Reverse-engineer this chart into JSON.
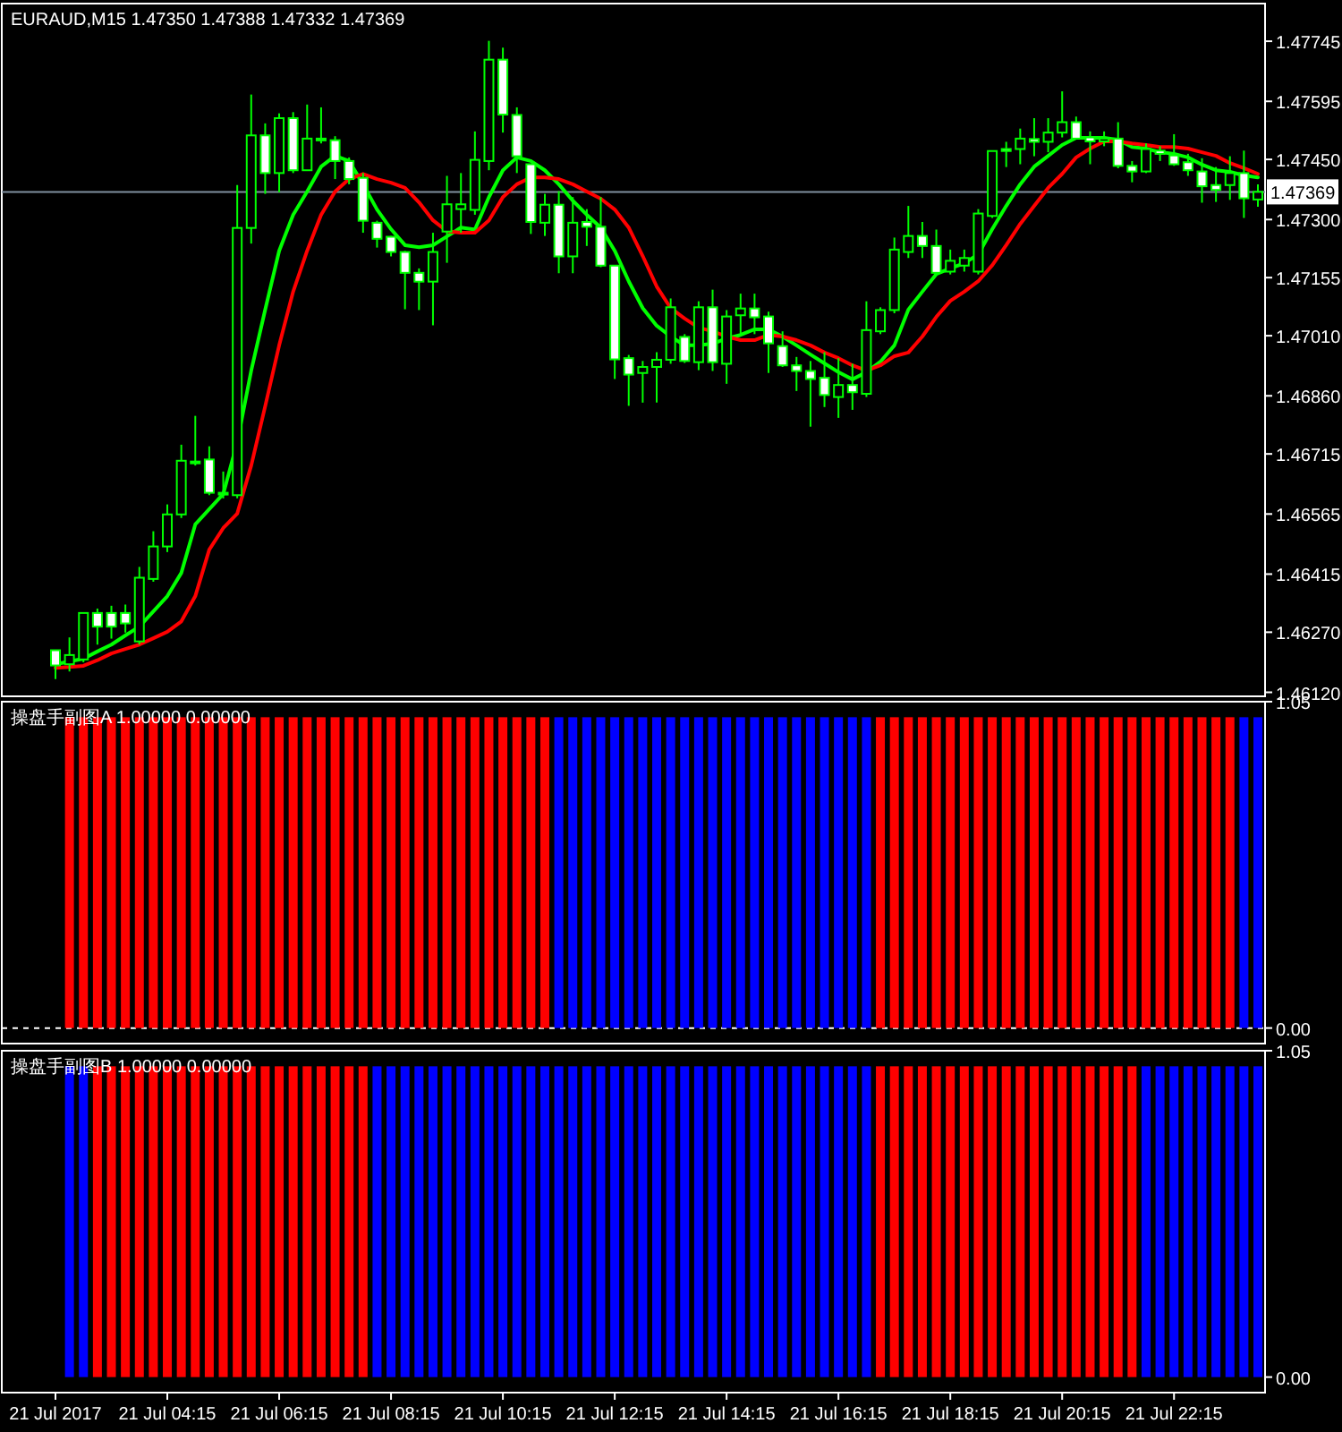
{
  "chart_data": [
    {
      "type": "candlestick",
      "title": "EURAUD,M15  1.47350 1.47388 1.47332 1.47369",
      "color": "#00ff00",
      "ohlc": [
        [
          1.46225,
          1.46226,
          1.46153,
          1.46187
        ],
        [
          1.4619,
          1.46257,
          1.46172,
          1.46213
        ],
        [
          1.46202,
          1.4632,
          1.46195,
          1.46318
        ],
        [
          1.46318,
          1.46329,
          1.46239,
          1.46284
        ],
        [
          1.46318,
          1.46336,
          1.46254,
          1.46284
        ],
        [
          1.46318,
          1.46339,
          1.46269,
          1.46292
        ],
        [
          1.46247,
          1.46433,
          1.46239,
          1.46406
        ],
        [
          1.46403,
          1.46522,
          1.46396,
          1.46484
        ],
        [
          1.46484,
          1.46589,
          1.4647,
          1.46564
        ],
        [
          1.46564,
          1.46738,
          1.46555,
          1.46698
        ],
        [
          1.46696,
          1.4681,
          1.46686,
          1.46694
        ],
        [
          1.46701,
          1.46734,
          1.46612,
          1.46618
        ],
        [
          1.46618,
          1.46671,
          1.46604,
          1.46615
        ],
        [
          1.46612,
          1.47386,
          1.46604,
          1.47279
        ],
        [
          1.47279,
          1.47612,
          1.4724,
          1.4751
        ],
        [
          1.4751,
          1.4754,
          1.47364,
          1.47416
        ],
        [
          1.47416,
          1.47565,
          1.47368,
          1.47553
        ],
        [
          1.47553,
          1.47568,
          1.47416,
          1.47423
        ],
        [
          1.47423,
          1.47587,
          1.47423,
          1.47502
        ],
        [
          1.47502,
          1.4758,
          1.4749,
          1.47499
        ],
        [
          1.47498,
          1.47508,
          1.47401,
          1.47446
        ],
        [
          1.47446,
          1.47455,
          1.47388,
          1.47401
        ],
        [
          1.47404,
          1.47416,
          1.47267,
          1.47297
        ],
        [
          1.47292,
          1.47297,
          1.4723,
          1.47252
        ],
        [
          1.47257,
          1.47259,
          1.47208,
          1.47219
        ],
        [
          1.47219,
          1.47222,
          1.47076,
          1.47167
        ],
        [
          1.47167,
          1.47178,
          1.47074,
          1.47145
        ],
        [
          1.47145,
          1.47267,
          1.47036,
          1.47219
        ],
        [
          1.4727,
          1.47409,
          1.47192,
          1.47338
        ],
        [
          1.47326,
          1.47416,
          1.47267,
          1.47338
        ],
        [
          1.47324,
          1.4752,
          1.47312,
          1.47449
        ],
        [
          1.47446,
          1.47746,
          1.47423,
          1.47699
        ],
        [
          1.47699,
          1.47729,
          1.47517,
          1.47562
        ],
        [
          1.47561,
          1.4758,
          1.47416,
          1.47458
        ],
        [
          1.47438,
          1.47438,
          1.47264,
          1.47294
        ],
        [
          1.47292,
          1.47364,
          1.47259,
          1.47337
        ],
        [
          1.47337,
          1.47371,
          1.47166,
          1.47208
        ],
        [
          1.47208,
          1.47356,
          1.47166,
          1.47292
        ],
        [
          1.47294,
          1.47326,
          1.47234,
          1.47282
        ],
        [
          1.47282,
          1.47356,
          1.47181,
          1.47185
        ],
        [
          1.47185,
          1.47185,
          1.46902,
          1.46951
        ],
        [
          1.46954,
          1.46962,
          1.46835,
          1.46913
        ],
        [
          1.46917,
          1.46947,
          1.46843,
          1.46932
        ],
        [
          1.46932,
          1.46969,
          1.46843,
          1.4695
        ],
        [
          1.4695,
          1.47103,
          1.4694,
          1.47081
        ],
        [
          1.47007,
          1.47014,
          1.46942,
          1.46947
        ],
        [
          1.46944,
          1.47096,
          1.46924,
          1.47081
        ],
        [
          1.47081,
          1.47125,
          1.46922,
          1.46944
        ],
        [
          1.4694,
          1.47074,
          1.4689,
          1.47058
        ],
        [
          1.47061,
          1.47115,
          1.47014,
          1.47078
        ],
        [
          1.47078,
          1.47115,
          1.47014,
          1.47056
        ],
        [
          1.47058,
          1.4707,
          1.46917,
          1.46991
        ],
        [
          1.46984,
          1.47021,
          1.46932,
          1.46936
        ],
        [
          1.46936,
          1.46957,
          1.46872,
          1.46922
        ],
        [
          1.46922,
          1.46947,
          1.46783,
          1.46902
        ],
        [
          1.46905,
          1.46969,
          1.46832,
          1.46862
        ],
        [
          1.46857,
          1.46954,
          1.46805,
          1.46887
        ],
        [
          1.46887,
          1.4694,
          1.46825,
          1.46869
        ],
        [
          1.46865,
          1.47096,
          1.46857,
          1.47024
        ],
        [
          1.47021,
          1.47081,
          1.47014,
          1.47074
        ],
        [
          1.47074,
          1.47255,
          1.47066,
          1.47225
        ],
        [
          1.47219,
          1.47334,
          1.47204,
          1.47259
        ],
        [
          1.47259,
          1.47294,
          1.47204,
          1.47234
        ],
        [
          1.47234,
          1.47275,
          1.47163,
          1.47167
        ],
        [
          1.4717,
          1.47225,
          1.47163,
          1.47197
        ],
        [
          1.47185,
          1.47225,
          1.4717,
          1.47204
        ],
        [
          1.4717,
          1.47326,
          1.47163,
          1.47315
        ],
        [
          1.47309,
          1.47471,
          1.47304,
          1.47471
        ],
        [
          1.47476,
          1.47494,
          1.47431,
          1.47471
        ],
        [
          1.47476,
          1.47527,
          1.47438,
          1.47502
        ],
        [
          1.47501,
          1.47553,
          1.47458,
          1.47494
        ],
        [
          1.47494,
          1.47553,
          1.47468,
          1.47517
        ],
        [
          1.47517,
          1.4762,
          1.47505,
          1.47543
        ],
        [
          1.47543,
          1.47557,
          1.47502,
          1.47502
        ],
        [
          1.47505,
          1.4752,
          1.47438,
          1.47495
        ],
        [
          1.47495,
          1.4752,
          1.47483,
          1.47502
        ],
        [
          1.47502,
          1.47543,
          1.47428,
          1.47434
        ],
        [
          1.47434,
          1.47446,
          1.47393,
          1.4742
        ],
        [
          1.4742,
          1.4749,
          1.47416,
          1.47476
        ],
        [
          1.47472,
          1.47483,
          1.47446,
          1.47464
        ],
        [
          1.4746,
          1.47513,
          1.47434,
          1.47438
        ],
        [
          1.47443,
          1.47464,
          1.47409,
          1.47423
        ],
        [
          1.4742,
          1.47453,
          1.47342,
          1.47383
        ],
        [
          1.47386,
          1.47431,
          1.47344,
          1.47374
        ],
        [
          1.47386,
          1.47458,
          1.47349,
          1.47416
        ],
        [
          1.47416,
          1.47472,
          1.47304,
          1.47353
        ],
        [
          1.4735,
          1.47388,
          1.47332,
          1.47369
        ]
      ],
      "series": [
        {
          "type": "line",
          "color": "#00ff00",
          "values": [
            1.4619,
            1.46197,
            1.46204,
            1.46222,
            1.46239,
            1.46262,
            1.46284,
            1.46322,
            1.4636,
            1.46418,
            1.46539,
            1.46577,
            1.46615,
            1.46744,
            1.46923,
            1.47075,
            1.47222,
            1.47312,
            1.4737,
            1.47432,
            1.47459,
            1.47446,
            1.47388,
            1.47325,
            1.47276,
            1.47236,
            1.47231,
            1.47236,
            1.47258,
            1.4728,
            1.47275,
            1.47356,
            1.47423,
            1.47455,
            1.47446,
            1.47423,
            1.47388,
            1.47347,
            1.47312,
            1.4728,
            1.47222,
            1.47146,
            1.47079,
            1.47035,
            1.47008,
            1.46986,
            1.46986,
            1.4699,
            1.47003,
            1.47012,
            1.47026,
            1.47026,
            1.47008,
            1.46986,
            1.46963,
            1.46941,
            1.46919,
            1.46901,
            1.46919,
            1.46945,
            1.46986,
            1.47075,
            1.4712,
            1.47164,
            1.47178,
            1.47191,
            1.47213,
            1.47276,
            1.47334,
            1.47388,
            1.47432,
            1.47459,
            1.47486,
            1.47504,
            1.47504,
            1.47504,
            1.47499,
            1.47481,
            1.47477,
            1.47468,
            1.47464,
            1.47455,
            1.47437,
            1.47423,
            1.47419,
            1.4741,
            1.47405
          ]
        },
        {
          "type": "line",
          "color": "#ff0000",
          "values": [
            1.46181,
            1.46183,
            1.46186,
            1.462,
            1.46217,
            1.46228,
            1.46239,
            1.46255,
            1.46271,
            1.46297,
            1.4636,
            1.46476,
            1.4653,
            1.46566,
            1.46686,
            1.46834,
            1.46986,
            1.4712,
            1.47222,
            1.47312,
            1.4737,
            1.47401,
            1.47414,
            1.47401,
            1.47392,
            1.47379,
            1.47343,
            1.47298,
            1.47271,
            1.47267,
            1.47267,
            1.47298,
            1.47356,
            1.47388,
            1.47405,
            1.47405,
            1.47401,
            1.47388,
            1.4737,
            1.47352,
            1.47325,
            1.4728,
            1.47209,
            1.47133,
            1.47079,
            1.47053,
            1.4703,
            1.47021,
            1.47008,
            1.46999,
            1.46999,
            1.47012,
            1.47008,
            1.46999,
            1.46986,
            1.46968,
            1.46954,
            1.46936,
            1.46923,
            1.46936,
            1.46959,
            1.46968,
            1.47008,
            1.47057,
            1.47097,
            1.4712,
            1.47146,
            1.47186,
            1.47236,
            1.47289,
            1.47334,
            1.47379,
            1.47414,
            1.47455,
            1.47477,
            1.47495,
            1.47495,
            1.4749,
            1.47486,
            1.47481,
            1.47481,
            1.47477,
            1.47468,
            1.47459,
            1.47441,
            1.47428,
            1.47414
          ]
        }
      ],
      "ylim": [
        1.4611,
        1.47839
      ],
      "yticks": [
        {
          "value": 1.47745,
          "label": "1.47745"
        },
        {
          "value": 1.47595,
          "label": "1.47595"
        },
        {
          "value": 1.4745,
          "label": "1.47450"
        },
        {
          "value": 1.473,
          "label": "1.47300"
        },
        {
          "value": 1.47155,
          "label": "1.47155"
        },
        {
          "value": 1.4701,
          "label": "1.47010"
        },
        {
          "value": 1.4686,
          "label": "1.46860"
        },
        {
          "value": 1.46715,
          "label": "1.46715"
        },
        {
          "value": 1.46565,
          "label": "1.46565"
        },
        {
          "value": 1.46415,
          "label": "1.46415"
        },
        {
          "value": 1.4627,
          "label": "1.46270"
        },
        {
          "value": 1.4612,
          "label": "1.46120"
        }
      ],
      "ref_lines": [
        {
          "axis": "y",
          "value": 1.47369,
          "label": "1.47369",
          "color": "#8090a0"
        }
      ],
      "tick_labels": "y"
    },
    {
      "type": "bar",
      "title": "操盘手副图A 1.00000 0.00000",
      "series": [
        {
          "color": "#ff0000",
          "values": [
            null,
            1,
            1,
            1,
            1,
            1,
            1,
            1,
            1,
            1,
            1,
            1,
            1,
            1,
            1,
            1,
            1,
            1,
            1,
            1,
            1,
            1,
            1,
            1,
            1,
            1,
            1,
            1,
            1,
            1,
            1,
            1,
            1,
            1,
            1,
            1,
            null,
            null,
            null,
            null,
            null,
            null,
            null,
            null,
            null,
            null,
            null,
            null,
            null,
            null,
            null,
            null,
            null,
            null,
            null,
            null,
            null,
            null,
            null,
            1,
            1,
            1,
            1,
            1,
            1,
            1,
            1,
            1,
            1,
            1,
            1,
            1,
            1,
            1,
            1,
            1,
            1,
            1,
            1,
            1,
            1,
            1,
            1,
            1,
            1,
            null,
            null
          ]
        },
        {
          "color": "#0000ff",
          "values": [
            null,
            null,
            null,
            null,
            null,
            null,
            null,
            null,
            null,
            null,
            null,
            null,
            null,
            null,
            null,
            null,
            null,
            null,
            null,
            null,
            null,
            null,
            null,
            null,
            null,
            null,
            null,
            null,
            null,
            null,
            null,
            null,
            null,
            null,
            null,
            null,
            1,
            1,
            1,
            1,
            1,
            1,
            1,
            1,
            1,
            1,
            1,
            1,
            1,
            1,
            1,
            1,
            1,
            1,
            1,
            1,
            1,
            1,
            1,
            null,
            null,
            null,
            null,
            null,
            null,
            null,
            null,
            null,
            null,
            null,
            null,
            null,
            null,
            null,
            null,
            null,
            null,
            null,
            null,
            null,
            null,
            null,
            null,
            null,
            null,
            1,
            1
          ]
        }
      ],
      "ylim": [
        -0.05,
        1.05
      ],
      "yticks": [
        1.05,
        {
          "value": 0,
          "label": "0.00"
        }
      ],
      "ref_lines": [
        {
          "axis": "y",
          "value": 0,
          "color": "#ffffff",
          "line_style": "dashed"
        }
      ],
      "tick_labels": "y"
    },
    {
      "type": "bar",
      "title": "操盘手副图B 1.00000 0.00000",
      "categories": [
        "21 Jul 2017",
        null,
        null,
        null,
        null,
        null,
        null,
        null,
        "21 Jul 04:15",
        null,
        null,
        null,
        null,
        null,
        null,
        null,
        "21 Jul 06:15",
        null,
        null,
        null,
        null,
        null,
        null,
        null,
        "21 Jul 08:15",
        null,
        null,
        null,
        null,
        null,
        null,
        null,
        "21 Jul 10:15",
        null,
        null,
        null,
        null,
        null,
        null,
        null,
        "21 Jul 12:15",
        null,
        null,
        null,
        null,
        null,
        null,
        null,
        "21 Jul 14:15",
        null,
        null,
        null,
        null,
        null,
        null,
        null,
        "21 Jul 16:15",
        null,
        null,
        null,
        null,
        null,
        null,
        null,
        "21 Jul 18:15",
        null,
        null,
        null,
        null,
        null,
        null,
        null,
        "21 Jul 20:15",
        null,
        null,
        null,
        null,
        null,
        null,
        null,
        "21 Jul 22:15",
        null,
        null,
        null,
        null,
        null,
        null
      ],
      "series": [
        {
          "color": "#ff0000",
          "values": [
            null,
            null,
            null,
            1,
            1,
            1,
            1,
            1,
            1,
            1,
            1,
            1,
            1,
            1,
            1,
            1,
            1,
            1,
            1,
            1,
            1,
            1,
            1,
            null,
            null,
            null,
            null,
            null,
            null,
            null,
            null,
            null,
            null,
            null,
            null,
            null,
            null,
            null,
            null,
            null,
            null,
            null,
            null,
            null,
            null,
            null,
            null,
            null,
            null,
            null,
            null,
            null,
            null,
            null,
            null,
            null,
            null,
            null,
            null,
            1,
            1,
            1,
            1,
            1,
            1,
            1,
            1,
            1,
            1,
            1,
            1,
            1,
            1,
            1,
            1,
            1,
            1,
            1,
            null,
            null,
            null,
            null,
            null,
            null,
            null,
            null,
            null
          ]
        },
        {
          "color": "#0000ff",
          "values": [
            null,
            1,
            1,
            null,
            null,
            null,
            null,
            null,
            null,
            null,
            null,
            null,
            null,
            null,
            null,
            null,
            null,
            null,
            null,
            null,
            null,
            null,
            null,
            1,
            1,
            1,
            1,
            1,
            1,
            1,
            1,
            1,
            1,
            1,
            1,
            1,
            1,
            1,
            1,
            1,
            1,
            1,
            1,
            1,
            1,
            1,
            1,
            1,
            1,
            1,
            1,
            1,
            1,
            1,
            1,
            1,
            1,
            1,
            1,
            null,
            null,
            null,
            null,
            null,
            null,
            null,
            null,
            null,
            null,
            null,
            null,
            null,
            null,
            null,
            null,
            null,
            null,
            null,
            1,
            1,
            1,
            1,
            1,
            1,
            1,
            1,
            1
          ]
        }
      ],
      "ylim": [
        -0.05,
        1.05
      ],
      "yticks": [
        1.05,
        {
          "value": 0,
          "label": "0.00"
        }
      ]
    }
  ]
}
